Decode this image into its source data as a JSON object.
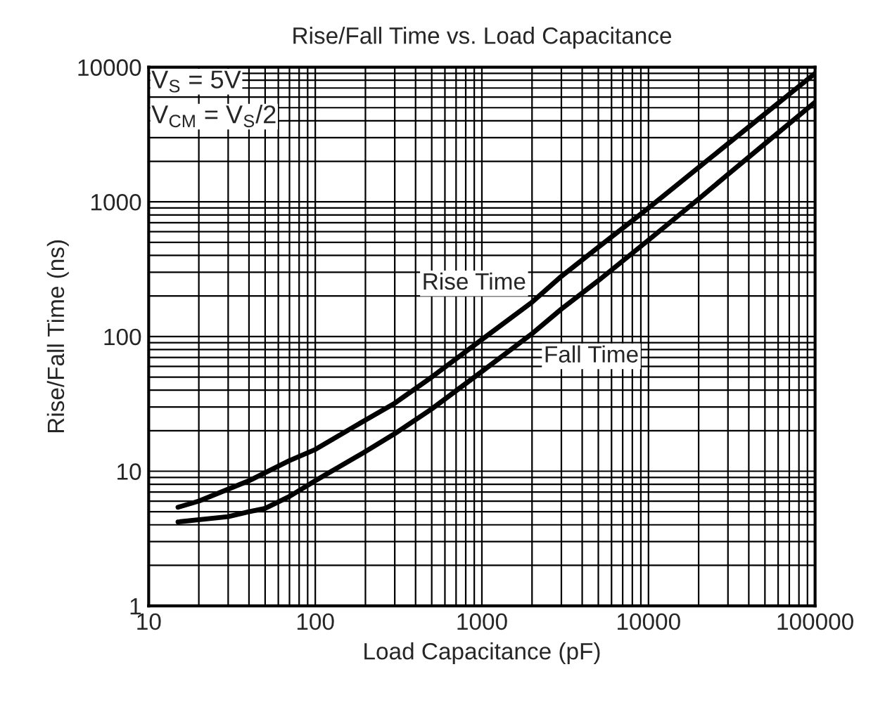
{
  "chart_data": {
    "type": "line",
    "title": "Rise/Fall Time vs. Load Capacitance",
    "xlabel": "Load Capacitance (pF)",
    "ylabel": "Rise/Fall Time (ns)",
    "log": "xy",
    "grid": true,
    "legend": false,
    "marker": "none",
    "line_style": "solid",
    "xlim": [
      10,
      100000
    ],
    "ylim": [
      1,
      10000
    ],
    "xticks": [
      10,
      100,
      1000,
      10000,
      100000
    ],
    "yticks": [
      1,
      10,
      100,
      1000,
      10000
    ],
    "annotations": [
      "V$_{S}$ = 5V",
      "V$_{CM}$ = V$_{S}$/2"
    ],
    "series": [
      {
        "name": "Rise Time",
        "color": "#000000",
        "x": [
          15,
          20,
          40,
          70,
          100,
          200,
          300,
          500,
          1000,
          2000,
          3000,
          5000,
          10000,
          20000,
          30000,
          50000,
          100000
        ],
        "values": [
          5.4,
          6,
          8.5,
          12,
          14.5,
          24,
          32,
          50,
          95,
          180,
          280,
          460,
          900,
          1800,
          2700,
          4500,
          9000
        ]
      },
      {
        "name": "Fall Time",
        "color": "#000000",
        "x": [
          15,
          30,
          40,
          50,
          70,
          100,
          200,
          300,
          500,
          1000,
          2000,
          3000,
          5000,
          10000,
          20000,
          30000,
          50000,
          100000
        ],
        "values": [
          4.2,
          4.6,
          5,
          5.3,
          6.5,
          8.5,
          14,
          19,
          29,
          55,
          105,
          160,
          260,
          520,
          1050,
          1600,
          2700,
          5500
        ]
      }
    ]
  }
}
